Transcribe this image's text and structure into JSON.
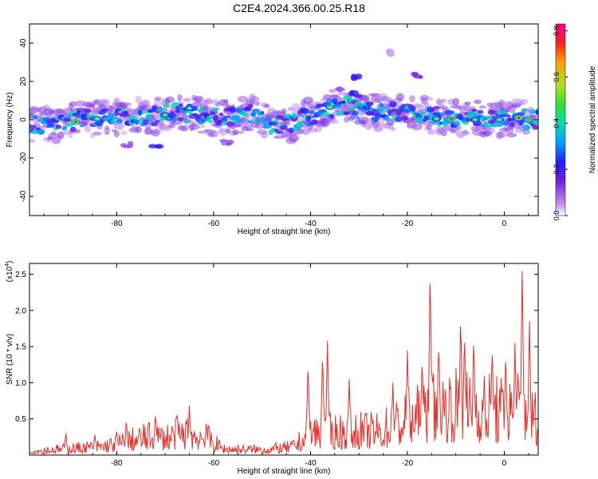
{
  "title": "C2E4.2024.366.00.25.R18",
  "colors": {
    "snr_line": "#e8302a",
    "colormap": [
      "#ffffff",
      "#8a2be2",
      "#3020ff",
      "#00b0ff",
      "#00e0c0",
      "#40e040",
      "#b0e020",
      "#ffa000",
      "#ff2020",
      "#ff00a0"
    ]
  },
  "chart_data": [
    {
      "type": "heatmap",
      "title": "C2E4.2024.366.00.25.R18",
      "xlabel": "Height of straight line (km)",
      "ylabel": "Frequency (Hz)",
      "xlim": [
        -98,
        7
      ],
      "ylim": [
        -50,
        50
      ],
      "xticks": [
        -80,
        -60,
        -40,
        -20,
        0
      ],
      "yticks": [
        -40,
        -20,
        0,
        20,
        40
      ],
      "colorbar": {
        "label": "Normalized spectral amplitude",
        "range": [
          0.0,
          0.83
        ],
        "ticks": [
          0.0,
          0.2,
          0.4,
          0.6,
          0.8
        ]
      },
      "band_center_hz": [
        [
          -98,
          -2
        ],
        [
          -92,
          -3
        ],
        [
          -88,
          0
        ],
        [
          -84,
          1
        ],
        [
          -80,
          1
        ],
        [
          -76,
          2
        ],
        [
          -72,
          2
        ],
        [
          -68,
          4
        ],
        [
          -64,
          3
        ],
        [
          -60,
          1
        ],
        [
          -56,
          2
        ],
        [
          -52,
          3
        ],
        [
          -50,
          0
        ],
        [
          -48,
          -3
        ],
        [
          -44,
          -2
        ],
        [
          -40,
          2
        ],
        [
          -36,
          6
        ],
        [
          -33,
          8
        ],
        [
          -30,
          5
        ],
        [
          -26,
          4
        ],
        [
          -22,
          4
        ],
        [
          -18,
          3
        ],
        [
          -14,
          2
        ],
        [
          -10,
          1
        ],
        [
          -6,
          1
        ],
        [
          -2,
          0
        ],
        [
          2,
          1
        ],
        [
          7,
          0
        ]
      ],
      "hotspots": [
        {
          "x": -88.5,
          "y": -1,
          "amplitude": 0.8
        },
        {
          "x": -84,
          "y": 0.5,
          "amplitude": 0.6
        },
        {
          "x": -70,
          "y": 2.5,
          "amplitude": 0.55
        },
        {
          "x": -65,
          "y": 6,
          "amplitude": 0.55
        },
        {
          "x": -36,
          "y": 6.5,
          "amplitude": 0.65
        },
        {
          "x": -14,
          "y": 0.5,
          "amplitude": 0.55
        },
        {
          "x": -11,
          "y": 0.5,
          "amplitude": 0.75
        },
        {
          "x": -6,
          "y": 0,
          "amplitude": 0.55
        },
        {
          "x": -1,
          "y": 0,
          "amplitude": 0.6
        },
        {
          "x": 3,
          "y": 1,
          "amplitude": 0.8
        },
        {
          "x": 5,
          "y": 0,
          "amplitude": 0.7
        }
      ],
      "side_features": [
        {
          "x": -31,
          "y": 22,
          "amplitude": 0.25
        },
        {
          "x": -31,
          "y": 13,
          "amplitude": 0.25
        },
        {
          "x": -18,
          "y": 23,
          "amplitude": 0.15
        },
        {
          "x": -72,
          "y": -13,
          "amplitude": 0.25
        },
        {
          "x": -78,
          "y": -13,
          "amplitude": 0.12
        },
        {
          "x": -57,
          "y": -12,
          "amplitude": 0.12
        },
        {
          "x": -23,
          "y": 35,
          "amplitude": 0.05
        }
      ]
    },
    {
      "type": "line",
      "xlabel": "Height of straight line (km)",
      "ylabel": "SNR (10 * v/v)",
      "y_multiplier": "(x10",
      "y_multiplier_exp": "4",
      "y_multiplier_close": ")",
      "xlim": [
        -98,
        7
      ],
      "ylim": [
        0,
        2.65
      ],
      "xticks": [
        -80,
        -60,
        -40,
        -20,
        0
      ],
      "yticks": [
        0.5,
        1.0,
        1.5,
        2.0,
        2.5
      ],
      "ytick_labels": [
        "0.5",
        "1.0",
        "1.5",
        "2.0",
        "2.5"
      ],
      "envelope": [
        [
          -98,
          0.1
        ],
        [
          -90,
          0.15
        ],
        [
          -82,
          0.22
        ],
        [
          -78,
          0.32
        ],
        [
          -74,
          0.42
        ],
        [
          -70,
          0.42
        ],
        [
          -66,
          0.5
        ],
        [
          -62,
          0.45
        ],
        [
          -58,
          0.15
        ],
        [
          -50,
          0.13
        ],
        [
          -44,
          0.18
        ],
        [
          -42,
          0.32
        ],
        [
          -40,
          0.55
        ],
        [
          -36,
          0.55
        ],
        [
          -32,
          0.55
        ],
        [
          -26,
          0.55
        ],
        [
          -22,
          0.75
        ],
        [
          -18,
          0.9
        ],
        [
          -16,
          1.05
        ],
        [
          -12,
          1.15
        ],
        [
          -8,
          1.1
        ],
        [
          -4,
          1.1
        ],
        [
          0,
          1.0
        ],
        [
          4,
          1.15
        ],
        [
          7,
          0.8
        ]
      ],
      "peaks": [
        [
          -90.5,
          0.3
        ],
        [
          -84.5,
          0.28
        ],
        [
          -80,
          0.32
        ],
        [
          -78,
          0.5
        ],
        [
          -72,
          0.6
        ],
        [
          -67.5,
          0.62
        ],
        [
          -65,
          0.68
        ],
        [
          -61.5,
          0.48
        ],
        [
          -40.5,
          1.3
        ],
        [
          -37.5,
          1.45
        ],
        [
          -36.5,
          1.58
        ],
        [
          -32,
          1.05
        ],
        [
          -23,
          1.0
        ],
        [
          -20,
          1.45
        ],
        [
          -17,
          1.22
        ],
        [
          -15.3,
          2.67
        ],
        [
          -13.5,
          1.6
        ],
        [
          -9,
          2.0
        ],
        [
          -8.2,
          1.75
        ],
        [
          -6.3,
          1.7
        ],
        [
          -2.5,
          1.55
        ],
        [
          0.3,
          1.45
        ],
        [
          2.2,
          1.55
        ],
        [
          3.7,
          2.55
        ],
        [
          5.2,
          1.85
        ]
      ]
    }
  ]
}
